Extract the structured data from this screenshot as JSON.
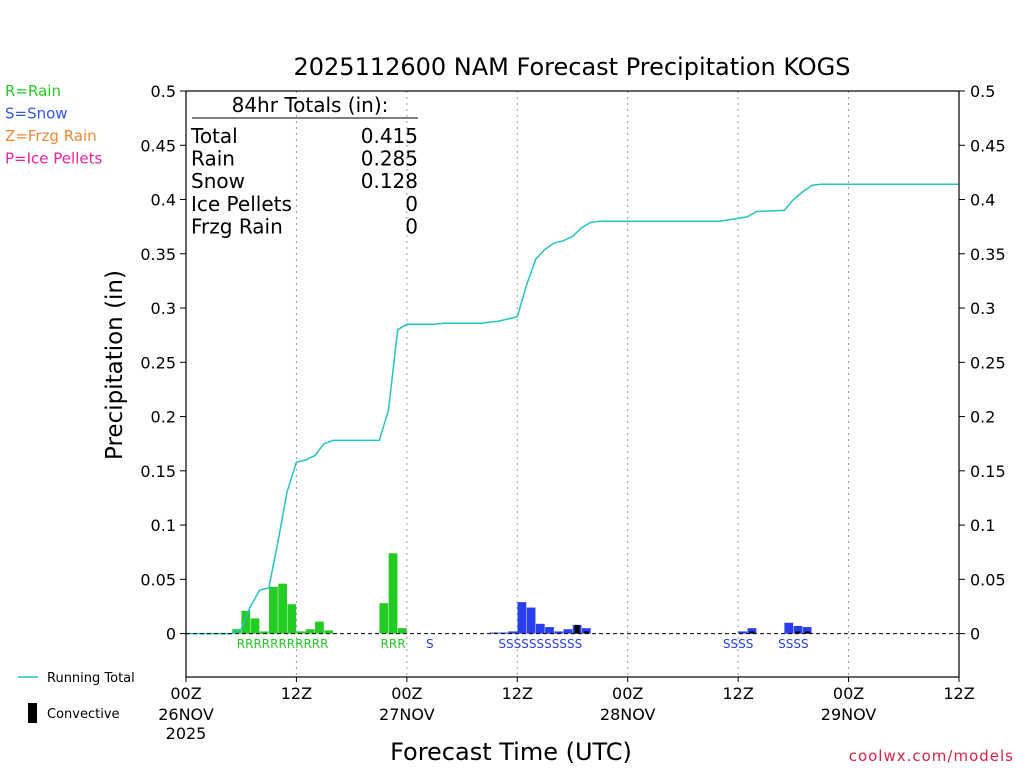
{
  "chart_data": {
    "type": "bar",
    "title": "2025112600 NAM Forecast Precipitation KOGS",
    "xlabel": "Forecast Time (UTC)",
    "ylabel": "Precipitation (in)",
    "ylim": [
      -0.04,
      0.5
    ],
    "xlim_hours": [
      0,
      84
    ],
    "y_ticks": [
      0,
      0.05,
      0.1,
      0.15,
      0.2,
      0.25,
      0.3,
      0.35,
      0.4,
      0.45,
      0.5
    ],
    "y_tick_labels": [
      "0",
      "0.05",
      "0.1",
      "0.15",
      "0.2",
      "0.25",
      "0.3",
      "0.35",
      "0.4",
      "0.45",
      "0.5"
    ],
    "x_ticks": [
      {
        "hour": 0,
        "label": "00Z",
        "date": "26NOV",
        "year": "2025"
      },
      {
        "hour": 12,
        "label": "12Z",
        "date": "",
        "year": ""
      },
      {
        "hour": 24,
        "label": "00Z",
        "date": "27NOV",
        "year": ""
      },
      {
        "hour": 36,
        "label": "12Z",
        "date": "",
        "year": ""
      },
      {
        "hour": 48,
        "label": "00Z",
        "date": "28NOV",
        "year": ""
      },
      {
        "hour": 60,
        "label": "12Z",
        "date": "",
        "year": ""
      },
      {
        "hour": 72,
        "label": "00Z",
        "date": "29NOV",
        "year": ""
      },
      {
        "hour": 84,
        "label": "12Z",
        "date": "",
        "year": ""
      }
    ],
    "gridline_hours": [
      12,
      24,
      36,
      48,
      60,
      72
    ],
    "ptype_legend": [
      {
        "text": "R=Rain",
        "color": "#22cc22"
      },
      {
        "text": "S=Snow",
        "color": "#3355ee"
      },
      {
        "text": "Z=Frzg Rain",
        "color": "#ee8833"
      },
      {
        "text": "P=Ice Pellets",
        "color": "#ee2299"
      }
    ],
    "series_legend": {
      "running_total": "Running Total",
      "convective": "Convective"
    },
    "totals_box": {
      "header": "84hr Totals (in):",
      "rows": [
        {
          "label": "Total",
          "value": "0.415"
        },
        {
          "label": "Rain",
          "value": "0.285"
        },
        {
          "label": "Snow",
          "value": "0.128"
        },
        {
          "label": "Ice Pellets",
          "value": "0"
        },
        {
          "label": "Frzg Rain",
          "value": "0"
        }
      ]
    },
    "bars": [
      {
        "hour": 6,
        "value": 0.004,
        "type": "rain"
      },
      {
        "hour": 7,
        "value": 0.021,
        "type": "rain"
      },
      {
        "hour": 8,
        "value": 0.014,
        "type": "rain"
      },
      {
        "hour": 9,
        "value": 0.002,
        "type": "rain"
      },
      {
        "hour": 10,
        "value": 0.043,
        "type": "rain"
      },
      {
        "hour": 11,
        "value": 0.046,
        "type": "rain"
      },
      {
        "hour": 12,
        "value": 0.027,
        "type": "rain"
      },
      {
        "hour": 13,
        "value": 0.002,
        "type": "rain"
      },
      {
        "hour": 14,
        "value": 0.004,
        "type": "rain"
      },
      {
        "hour": 15,
        "value": 0.011,
        "type": "rain"
      },
      {
        "hour": 16,
        "value": 0.003,
        "type": "rain"
      },
      {
        "hour": 22,
        "value": 0.028,
        "type": "rain"
      },
      {
        "hour": 23,
        "value": 0.074,
        "type": "rain"
      },
      {
        "hour": 24,
        "value": 0.005,
        "type": "rain"
      },
      {
        "hour": 34,
        "value": 0.001,
        "type": "snow"
      },
      {
        "hour": 35,
        "value": 0.001,
        "type": "snow"
      },
      {
        "hour": 36,
        "value": 0.002,
        "type": "snow"
      },
      {
        "hour": 37,
        "value": 0.029,
        "type": "snow"
      },
      {
        "hour": 38,
        "value": 0.024,
        "type": "snow"
      },
      {
        "hour": 39,
        "value": 0.009,
        "type": "snow"
      },
      {
        "hour": 40,
        "value": 0.006,
        "type": "snow"
      },
      {
        "hour": 41,
        "value": 0.002,
        "type": "snow"
      },
      {
        "hour": 42,
        "value": 0.004,
        "type": "snow"
      },
      {
        "hour": 43,
        "value": 0.008,
        "type": "snow",
        "convective": 0.008
      },
      {
        "hour": 44,
        "value": 0.005,
        "type": "snow",
        "convective": 0.002
      },
      {
        "hour": 61,
        "value": 0.002,
        "type": "snow"
      },
      {
        "hour": 62,
        "value": 0.005,
        "type": "snow",
        "convective": 0.002
      },
      {
        "hour": 66,
        "value": 0.01,
        "type": "snow"
      },
      {
        "hour": 67,
        "value": 0.007,
        "type": "snow",
        "convective": 0.002
      },
      {
        "hour": 68,
        "value": 0.006,
        "type": "snow",
        "convective": 0.002
      }
    ],
    "ptype_marks": [
      {
        "text": "RRRRRRRRRRR",
        "start_hour": 6,
        "end_hour": 16
      },
      {
        "text": "RRR",
        "start_hour": 22,
        "end_hour": 24
      },
      {
        "text": "S",
        "start_hour": 27,
        "end_hour": 27
      },
      {
        "text": "SSSSSSSSSSS",
        "start_hour": 34,
        "end_hour": 44
      },
      {
        "text": "SSSS",
        "start_hour": 59,
        "end_hour": 62
      },
      {
        "text": "SSSS",
        "start_hour": 65,
        "end_hour": 68
      }
    ],
    "running_total": [
      {
        "hour": 0,
        "value": 0
      },
      {
        "hour": 5,
        "value": 0
      },
      {
        "hour": 6,
        "value": 0.004
      },
      {
        "hour": 7,
        "value": 0.025
      },
      {
        "hour": 8,
        "value": 0.04
      },
      {
        "hour": 9,
        "value": 0.042
      },
      {
        "hour": 10,
        "value": 0.085
      },
      {
        "hour": 11,
        "value": 0.131
      },
      {
        "hour": 12,
        "value": 0.158
      },
      {
        "hour": 13,
        "value": 0.16
      },
      {
        "hour": 14,
        "value": 0.164
      },
      {
        "hour": 15,
        "value": 0.175
      },
      {
        "hour": 16,
        "value": 0.178
      },
      {
        "hour": 21,
        "value": 0.178
      },
      {
        "hour": 22,
        "value": 0.206
      },
      {
        "hour": 23,
        "value": 0.28
      },
      {
        "hour": 24,
        "value": 0.285
      },
      {
        "hour": 27,
        "value": 0.285
      },
      {
        "hour": 28,
        "value": 0.286
      },
      {
        "hour": 32,
        "value": 0.286
      },
      {
        "hour": 34,
        "value": 0.288
      },
      {
        "hour": 36,
        "value": 0.292
      },
      {
        "hour": 37,
        "value": 0.321
      },
      {
        "hour": 38,
        "value": 0.345
      },
      {
        "hour": 39,
        "value": 0.354
      },
      {
        "hour": 40,
        "value": 0.36
      },
      {
        "hour": 41,
        "value": 0.362
      },
      {
        "hour": 42,
        "value": 0.366
      },
      {
        "hour": 43,
        "value": 0.374
      },
      {
        "hour": 44,
        "value": 0.379
      },
      {
        "hour": 45,
        "value": 0.38
      },
      {
        "hour": 58,
        "value": 0.38
      },
      {
        "hour": 61,
        "value": 0.384
      },
      {
        "hour": 62,
        "value": 0.389
      },
      {
        "hour": 65,
        "value": 0.39
      },
      {
        "hour": 66,
        "value": 0.4
      },
      {
        "hour": 67,
        "value": 0.407
      },
      {
        "hour": 68,
        "value": 0.413
      },
      {
        "hour": 69,
        "value": 0.414
      },
      {
        "hour": 84,
        "value": 0.414
      }
    ]
  },
  "colors": {
    "rain": "#22cc22",
    "snow": "#2a3ef0",
    "convective": "#000000",
    "running_total": "#22c4c4",
    "credit": "#dd2244"
  },
  "credit": "coolwx.com/models"
}
